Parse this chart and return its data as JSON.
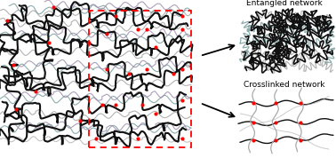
{
  "bg_color": "#ffffff",
  "crosslink_color": "#ff0000",
  "chain_dark": "#111111",
  "chain_gray": "#aaaaaa",
  "chain_teal": "#7a9e9e",
  "chain_purple": "#9988aa",
  "dashed_rect_color": "#ff0000",
  "label_crosslinked": "Crosslinked network",
  "label_entangled": "Entangled network",
  "label_fontsize": 6.5,
  "figsize": [
    3.78,
    1.78
  ],
  "dpi": 100
}
